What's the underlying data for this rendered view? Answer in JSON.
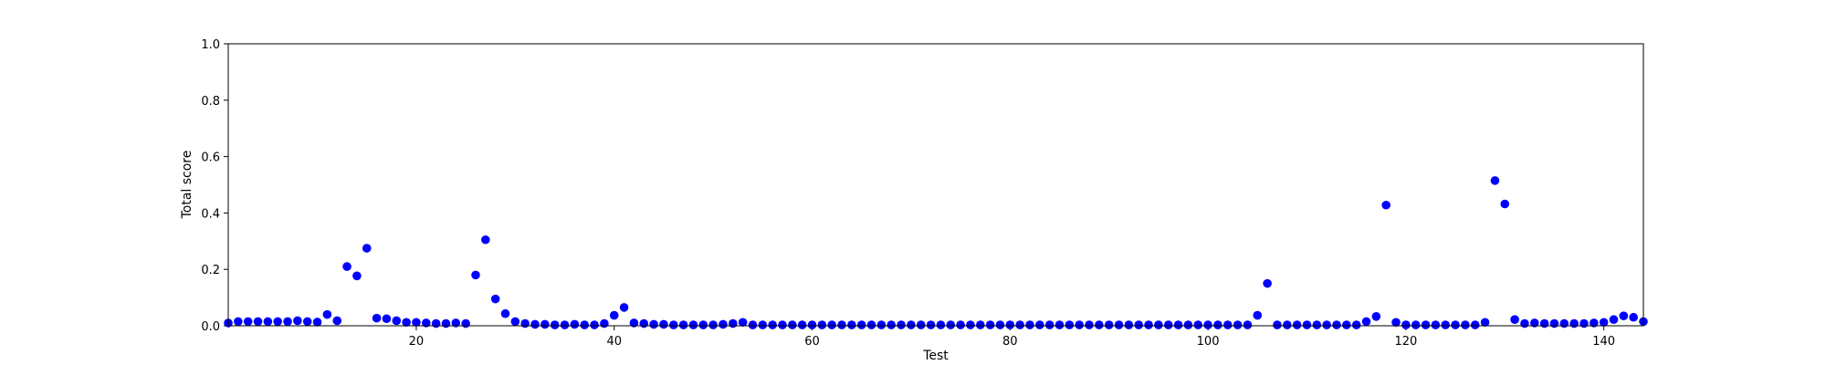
{
  "chart_data": {
    "type": "scatter",
    "title": "",
    "xlabel": "Test",
    "ylabel": "Total score",
    "xlim": [
      1,
      144
    ],
    "ylim": [
      0.0,
      1.0
    ],
    "xticks": [
      20,
      40,
      60,
      80,
      100,
      120,
      140
    ],
    "xtick_labels": [
      "20",
      "40",
      "60",
      "80",
      "100",
      "120",
      "140"
    ],
    "yticks": [
      0.0,
      0.2,
      0.4,
      0.6,
      0.8,
      1.0
    ],
    "ytick_labels": [
      "0.0",
      "0.2",
      "0.4",
      "0.6",
      "0.8",
      "1.0"
    ],
    "grid": false,
    "legend": "none",
    "marker_color": "#0000ff",
    "series": [
      {
        "name": "",
        "x": [
          1,
          2,
          3,
          4,
          5,
          6,
          7,
          8,
          9,
          10,
          11,
          12,
          13,
          14,
          15,
          16,
          17,
          18,
          19,
          20,
          21,
          22,
          23,
          24,
          25,
          26,
          27,
          28,
          29,
          30,
          31,
          32,
          33,
          34,
          35,
          36,
          37,
          38,
          39,
          40,
          41,
          42,
          43,
          44,
          45,
          46,
          47,
          48,
          49,
          50,
          51,
          52,
          53,
          54,
          55,
          56,
          57,
          58,
          59,
          60,
          61,
          62,
          63,
          64,
          65,
          66,
          67,
          68,
          69,
          70,
          71,
          72,
          73,
          74,
          75,
          76,
          77,
          78,
          79,
          80,
          81,
          82,
          83,
          84,
          85,
          86,
          87,
          88,
          89,
          90,
          91,
          92,
          93,
          94,
          95,
          96,
          97,
          98,
          99,
          100,
          101,
          102,
          103,
          104,
          105,
          106,
          107,
          108,
          109,
          110,
          111,
          112,
          113,
          114,
          115,
          116,
          117,
          118,
          119,
          120,
          121,
          122,
          123,
          124,
          125,
          126,
          127,
          128,
          129,
          130,
          131,
          132,
          133,
          134,
          135,
          136,
          137,
          138,
          139,
          140,
          141,
          142,
          143,
          144
        ],
        "y": [
          0.01,
          0.015,
          0.015,
          0.015,
          0.015,
          0.015,
          0.015,
          0.018,
          0.015,
          0.013,
          0.04,
          0.018,
          0.21,
          0.177,
          0.275,
          0.027,
          0.025,
          0.018,
          0.012,
          0.012,
          0.01,
          0.008,
          0.008,
          0.01,
          0.008,
          0.18,
          0.305,
          0.095,
          0.043,
          0.015,
          0.008,
          0.005,
          0.005,
          0.003,
          0.003,
          0.005,
          0.003,
          0.003,
          0.008,
          0.037,
          0.065,
          0.01,
          0.008,
          0.005,
          0.005,
          0.003,
          0.003,
          0.003,
          0.003,
          0.003,
          0.005,
          0.008,
          0.012,
          0.003,
          0.003,
          0.003,
          0.003,
          0.003,
          0.003,
          0.003,
          0.003,
          0.003,
          0.003,
          0.003,
          0.003,
          0.003,
          0.003,
          0.003,
          0.003,
          0.003,
          0.003,
          0.003,
          0.003,
          0.003,
          0.003,
          0.003,
          0.003,
          0.003,
          0.003,
          0.003,
          0.003,
          0.003,
          0.003,
          0.003,
          0.003,
          0.003,
          0.003,
          0.003,
          0.003,
          0.003,
          0.003,
          0.003,
          0.003,
          0.003,
          0.003,
          0.003,
          0.003,
          0.003,
          0.003,
          0.003,
          0.003,
          0.003,
          0.003,
          0.003,
          0.037,
          0.15,
          0.003,
          0.003,
          0.003,
          0.003,
          0.003,
          0.003,
          0.003,
          0.003,
          0.003,
          0.015,
          0.033,
          0.428,
          0.012,
          0.003,
          0.003,
          0.003,
          0.003,
          0.003,
          0.003,
          0.003,
          0.003,
          0.012,
          0.515,
          0.432,
          0.022,
          0.008,
          0.01,
          0.008,
          0.008,
          0.008,
          0.008,
          0.008,
          0.01,
          0.012,
          0.022,
          0.035,
          0.03,
          0.015
        ]
      }
    ]
  }
}
